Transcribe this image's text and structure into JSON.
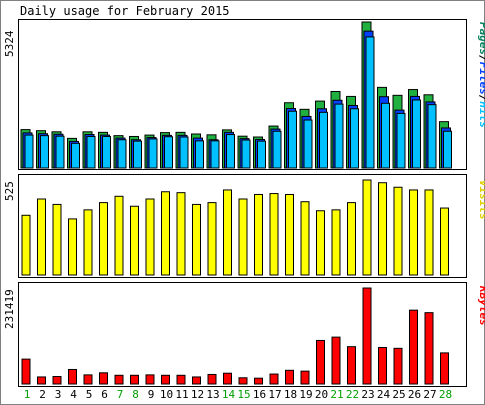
{
  "title": "Daily usage for February 2015",
  "colors": {
    "pages": "#00805c",
    "files": "#0040ff",
    "hits": "#00c0ff",
    "visits": "#ffff00",
    "kbytes": "#ff0000",
    "weekday_label": "#000000",
    "weekend_label": "#00a000",
    "panel_bg": "#ffffff",
    "frame": "#000000"
  },
  "chart_data": [
    {
      "type": "bar",
      "name": "hits-files-pages",
      "legend": [
        "Pages",
        "/",
        "Files",
        "/",
        "Hits"
      ],
      "ymax_label": "5324",
      "ymax": 5324,
      "categories": [
        "1",
        "2",
        "3",
        "4",
        "5",
        "6",
        "7",
        "8",
        "9",
        "10",
        "11",
        "12",
        "13",
        "14",
        "15",
        "16",
        "17",
        "18",
        "19",
        "20",
        "21",
        "22",
        "23",
        "24",
        "25",
        "26",
        "27",
        "28"
      ],
      "series": [
        {
          "name": "Hits",
          "values": [
            1400,
            1360,
            1320,
            1080,
            1320,
            1300,
            1180,
            1150,
            1200,
            1290,
            1300,
            1240,
            1210,
            1390,
            1160,
            1130,
            1530,
            2380,
            2140,
            2440,
            2790,
            2610,
            5324,
            2940,
            2650,
            2860,
            2670,
            1690
          ]
        },
        {
          "name": "Files",
          "values": [
            1280,
            1250,
            1230,
            970,
            1220,
            1200,
            1090,
            1030,
            1110,
            1190,
            1190,
            1090,
            1030,
            1300,
            1070,
            1040,
            1420,
            2170,
            1880,
            2160,
            2470,
            2280,
            4990,
            2600,
            2110,
            2610,
            2410,
            1460
          ]
        },
        {
          "name": "Pages",
          "values": [
            1200,
            1180,
            1160,
            900,
            1150,
            1150,
            1030,
            980,
            1060,
            1140,
            1130,
            990,
            990,
            1220,
            1020,
            980,
            1340,
            2070,
            1750,
            2030,
            2330,
            2160,
            4780,
            2360,
            1990,
            2480,
            2310,
            1340
          ]
        }
      ]
    },
    {
      "type": "bar",
      "name": "visits",
      "legend": [
        "Visits"
      ],
      "ymax_label": "525",
      "ymax": 525,
      "categories": [
        "1",
        "2",
        "3",
        "4",
        "5",
        "6",
        "7",
        "8",
        "9",
        "10",
        "11",
        "12",
        "13",
        "14",
        "15",
        "16",
        "17",
        "18",
        "19",
        "20",
        "21",
        "22",
        "23",
        "24",
        "25",
        "26",
        "27",
        "28"
      ],
      "series": [
        {
          "name": "Visits",
          "values": [
            330,
            420,
            390,
            310,
            360,
            400,
            435,
            380,
            420,
            460,
            455,
            390,
            400,
            470,
            420,
            445,
            450,
            445,
            405,
            355,
            360,
            400,
            525,
            510,
            485,
            470,
            470,
            370
          ]
        }
      ]
    },
    {
      "type": "bar",
      "name": "kbytes",
      "legend": [
        "KBytes"
      ],
      "ymax_label": "231419",
      "ymax": 231419,
      "categories": [
        "1",
        "2",
        "3",
        "4",
        "5",
        "6",
        "7",
        "8",
        "9",
        "10",
        "11",
        "12",
        "13",
        "14",
        "15",
        "16",
        "17",
        "18",
        "19",
        "20",
        "21",
        "22",
        "23",
        "24",
        "25",
        "26",
        "27",
        "28"
      ],
      "series": [
        {
          "name": "KBytes",
          "values": [
            60000,
            17000,
            18000,
            35000,
            22000,
            27000,
            21000,
            21000,
            22000,
            21000,
            21000,
            17000,
            23000,
            26000,
            15000,
            14000,
            24000,
            33000,
            31000,
            105000,
            113000,
            90000,
            231419,
            88000,
            86000,
            178000,
            172000,
            75000
          ]
        }
      ]
    }
  ],
  "weekend_days": [
    "1",
    "7",
    "8",
    "14",
    "15",
    "21",
    "22",
    "28"
  ]
}
